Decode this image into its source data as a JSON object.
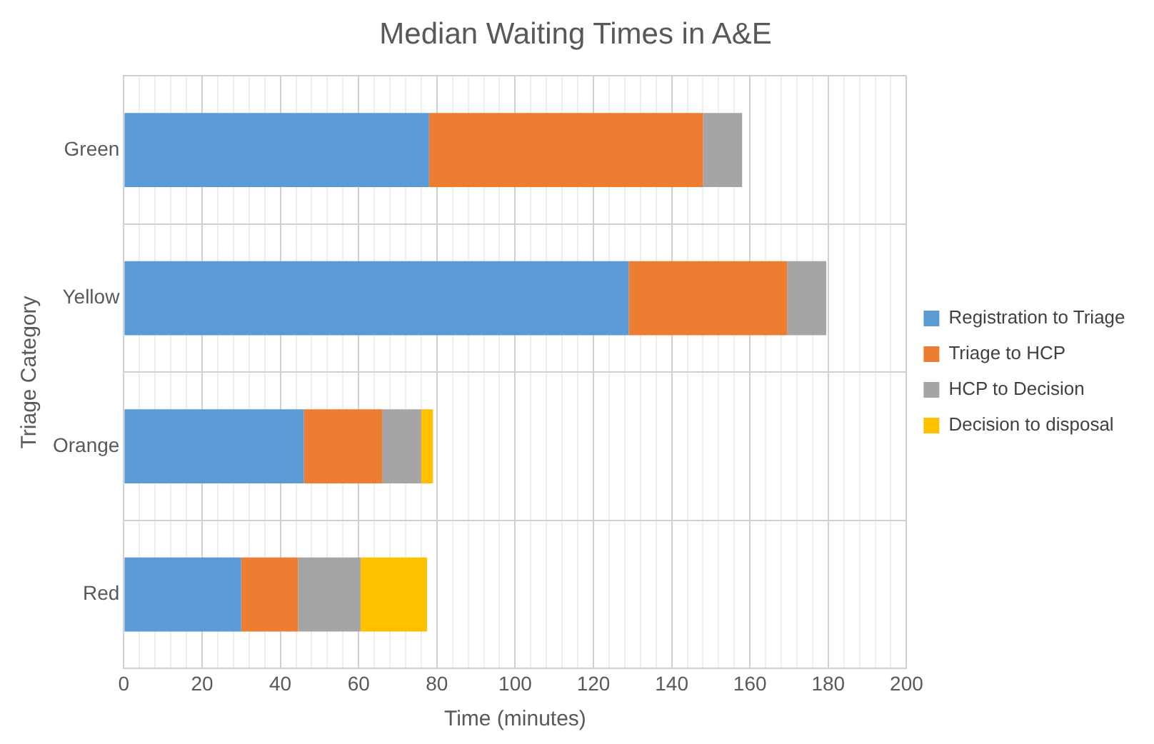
{
  "chart_data": {
    "type": "bar",
    "orientation": "horizontal",
    "stacked": true,
    "title": "Median Waiting Times in A&E",
    "xlabel": "Time (minutes)",
    "ylabel": "Triage Category",
    "categories": [
      "Green",
      "Yellow",
      "Orange",
      "Red"
    ],
    "series": [
      {
        "name": "Registration to Triage",
        "color": "#5b9bd5",
        "values": [
          78,
          129,
          46,
          30
        ]
      },
      {
        "name": "Triage to HCP",
        "color": "#ed7d31",
        "values": [
          70,
          40.5,
          20,
          14.5
        ]
      },
      {
        "name": "HCP to Decision",
        "color": "#a5a5a5",
        "values": [
          10,
          10,
          10,
          16
        ]
      },
      {
        "name": "Decision to disposal",
        "color": "#ffc000",
        "values": [
          null,
          null,
          3,
          17
        ]
      }
    ],
    "xlim": [
      0,
      200
    ],
    "xticks": [
      0,
      {
        "value": 4,
        "label": null
      },
      {
        "value": 8,
        "label": null
      },
      {
        "value": 12,
        "label": null
      },
      {
        "value": 16,
        "label": null
      },
      20,
      {
        "value": 24,
        "label": null
      },
      {
        "value": 28,
        "label": null
      },
      {
        "value": 32,
        "label": null
      },
      {
        "value": 36,
        "label": null
      },
      40,
      {
        "value": 44,
        "label": null
      },
      {
        "value": 48,
        "label": null
      },
      {
        "value": 52,
        "label": null
      },
      {
        "value": 56,
        "label": null
      },
      60,
      {
        "value": 64,
        "label": null
      },
      {
        "value": 68,
        "label": null
      },
      {
        "value": 72,
        "label": null
      },
      {
        "value": 76,
        "label": null
      },
      80,
      {
        "value": 84,
        "label": null
      },
      {
        "value": 88,
        "label": null
      },
      {
        "value": 92,
        "label": null
      },
      {
        "value": 96,
        "label": null
      },
      100,
      {
        "value": 104,
        "label": null
      },
      {
        "value": 108,
        "label": null
      },
      {
        "value": 112,
        "label": null
      },
      {
        "value": 116,
        "label": null
      },
      120,
      {
        "value": 124,
        "label": null
      },
      {
        "value": 128,
        "label": null
      },
      {
        "value": 132,
        "label": null
      },
      {
        "value": 136,
        "label": null
      },
      140,
      {
        "value": 144,
        "label": null
      },
      {
        "value": 148,
        "label": null
      },
      {
        "value": 152,
        "label": null
      },
      {
        "value": 156,
        "label": null
      },
      160,
      {
        "value": 164,
        "label": null
      },
      {
        "value": 168,
        "label": null
      },
      {
        "value": 172,
        "label": null
      },
      {
        "value": 176,
        "label": null
      },
      180,
      {
        "value": 184,
        "label": null
      },
      {
        "value": 188,
        "label": null
      },
      {
        "value": 192,
        "label": null
      },
      {
        "value": 196,
        "label": null
      },
      200
    ],
    "grid": true,
    "legend": "right"
  }
}
